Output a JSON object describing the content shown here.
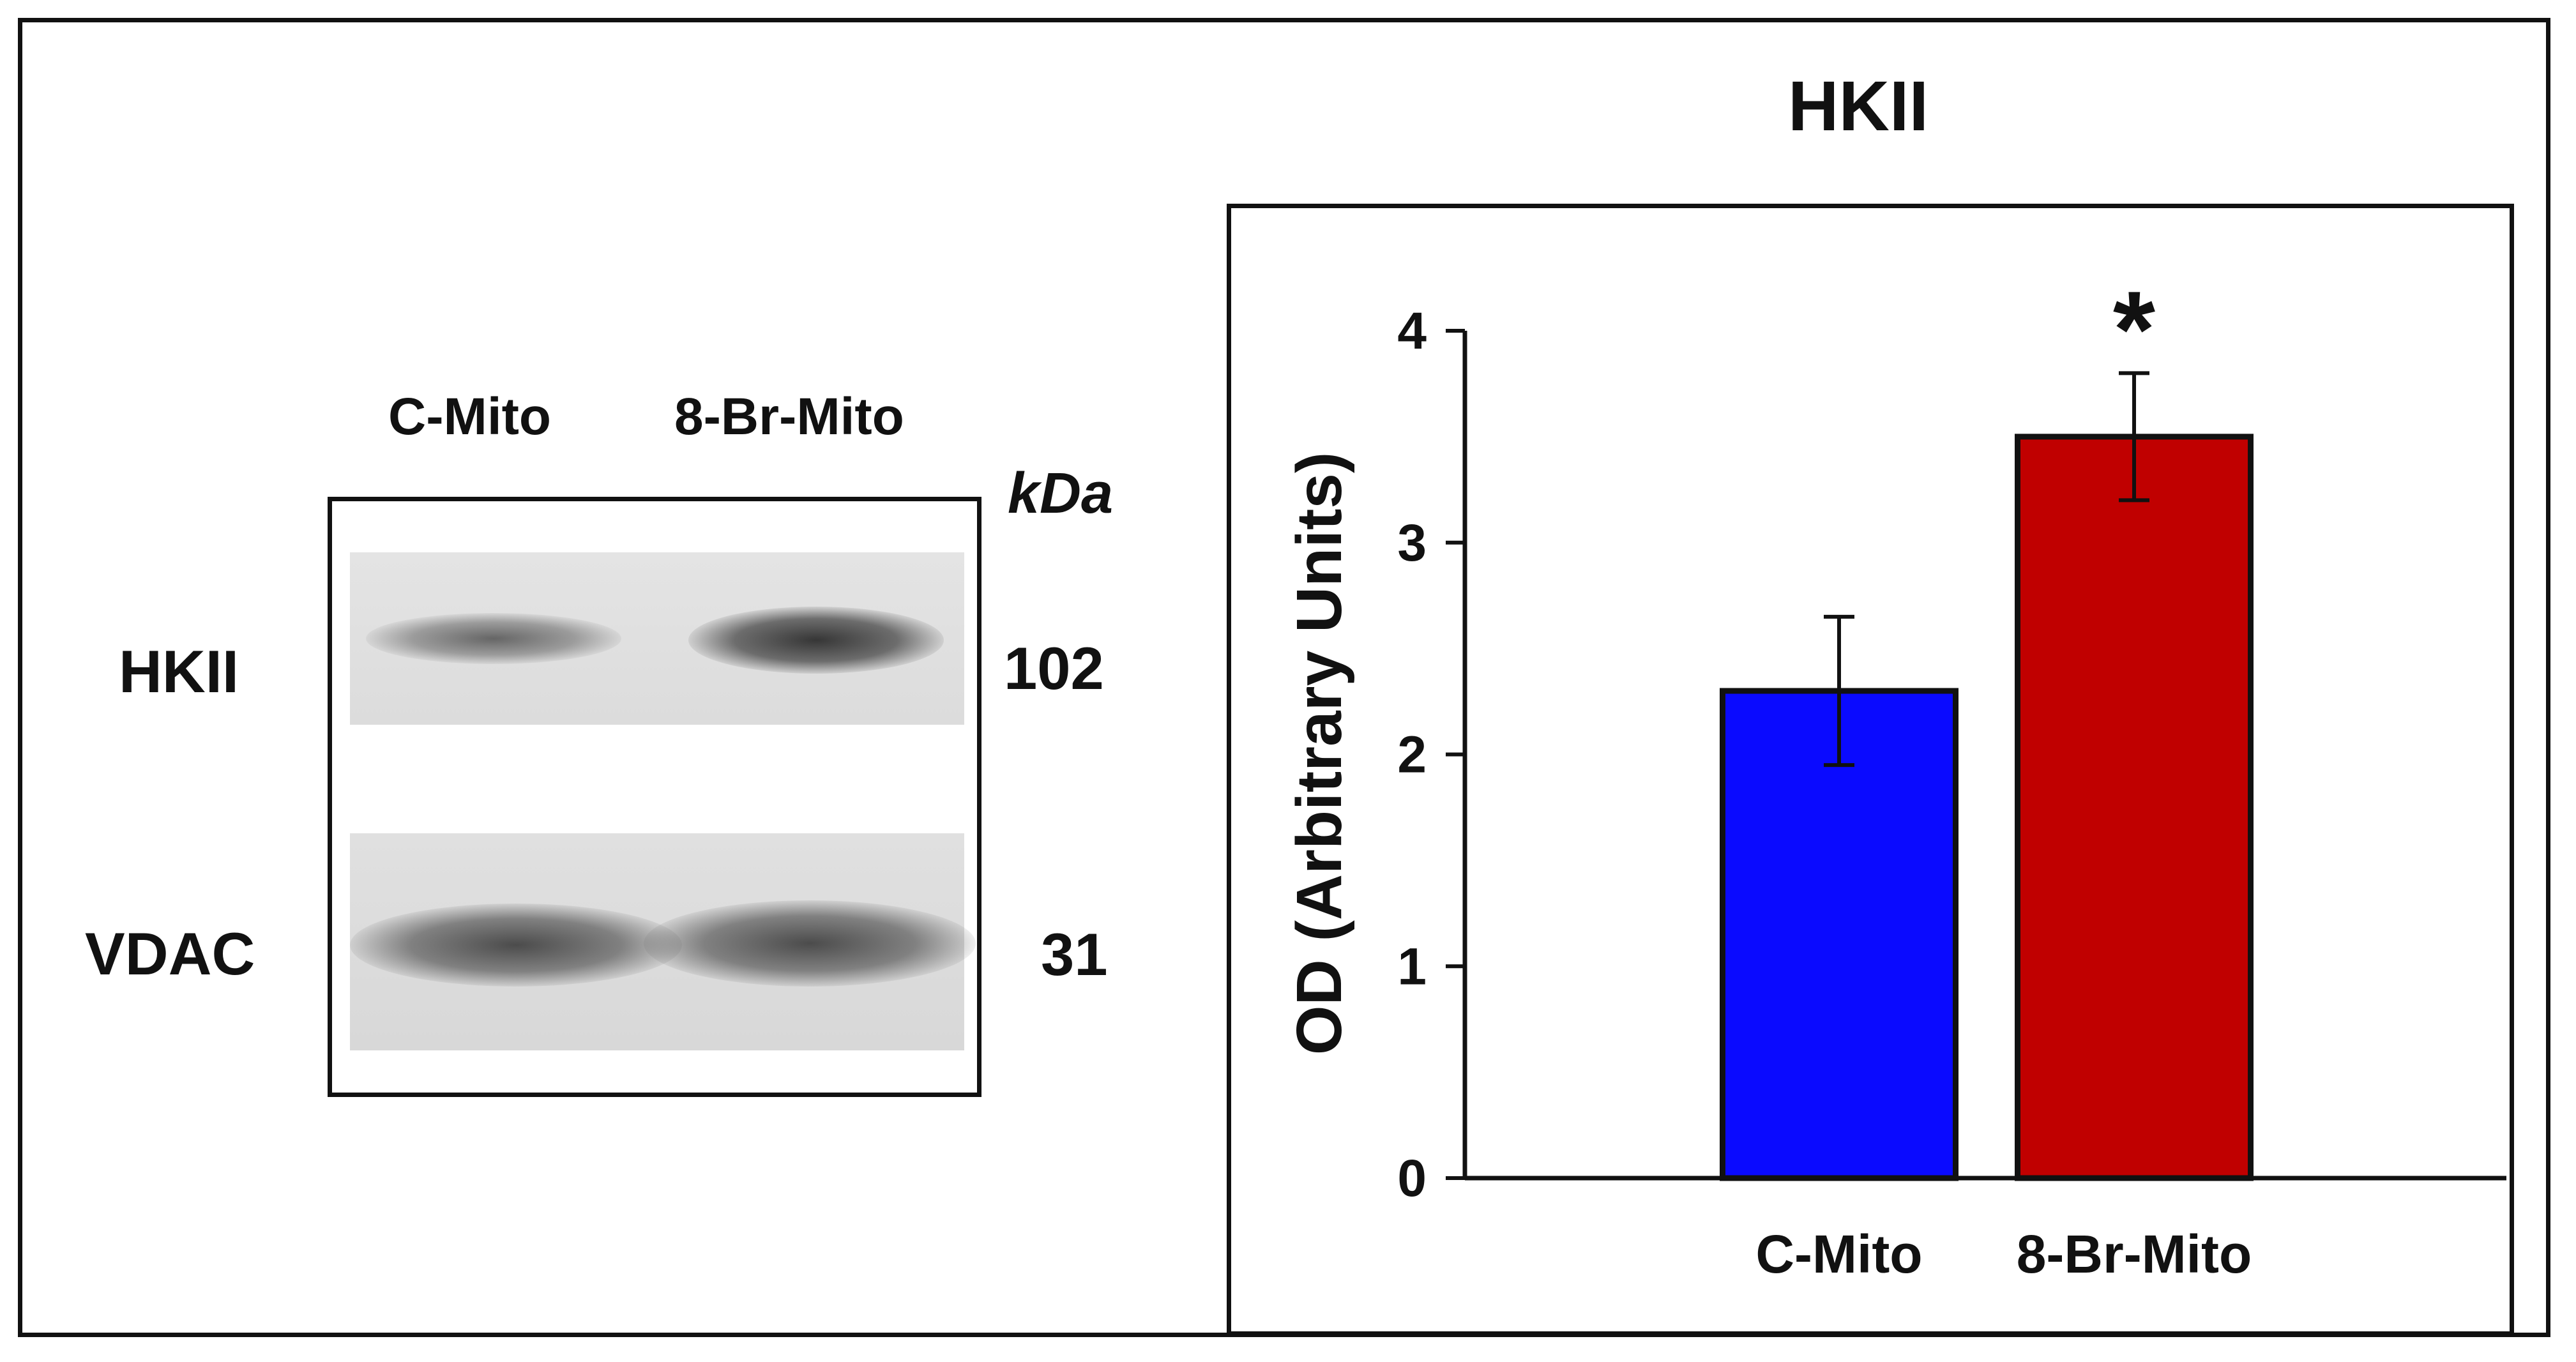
{
  "blot": {
    "lane_labels": [
      "C-Mito",
      "8-Br-Mito"
    ],
    "unit_label": "kDa",
    "rows": [
      {
        "protein": "HKII",
        "kda": "102"
      },
      {
        "protein": "VDAC",
        "kda": "31"
      }
    ]
  },
  "chart_data": {
    "type": "bar",
    "title": "HKII",
    "ylabel": "OD (Arbitrary Units)",
    "xlabel": "",
    "categories": [
      "C-Mito",
      "8-Br-Mito"
    ],
    "values": [
      2.3,
      3.5
    ],
    "errors": [
      0.35,
      0.3
    ],
    "colors": [
      "#0a0aff",
      "#c00000"
    ],
    "significance": [
      "",
      "*"
    ],
    "ylim": [
      0,
      4
    ],
    "yticks": [
      0,
      1,
      2,
      3,
      4
    ],
    "grid": false
  }
}
